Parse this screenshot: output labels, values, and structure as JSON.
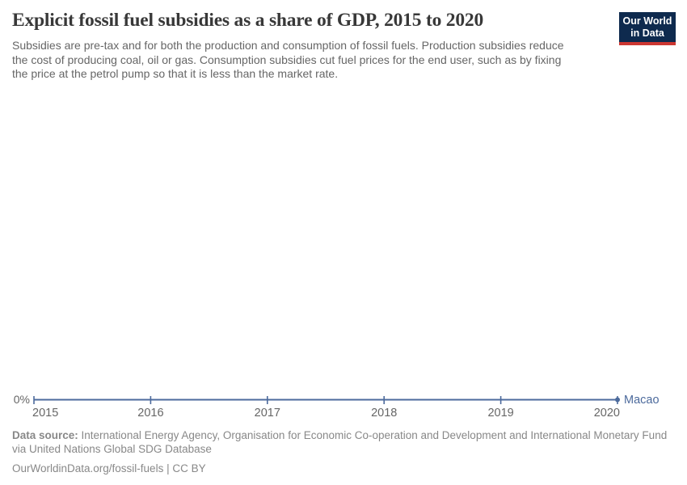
{
  "header": {
    "title": "Explicit fossil fuel subsidies as a share of GDP, 2015 to 2020",
    "subtitle_lines": [
      "Subsidies are pre-tax and for both the production and consumption of fossil fuels. Production subsidies reduce",
      "the cost of producing coal, oil or gas. Consumption subsidies cut fuel prices for the end user, such as by fixing",
      "the price at the petrol pump so that it is less than the market rate."
    ]
  },
  "logo": {
    "line1": "Our World",
    "line2": "in Data",
    "bg_color": "#0e2a4e",
    "stripe_color": "#cc3732"
  },
  "chart_data": {
    "type": "line",
    "title": "Explicit fossil fuel subsidies as a share of GDP, 2015 to 2020",
    "x": [
      2015,
      2016,
      2017,
      2018,
      2019,
      2020
    ],
    "series": [
      {
        "name": "Macao",
        "values": [
          0,
          0,
          0,
          0,
          0,
          0
        ],
        "color": "#4c6a9c"
      }
    ],
    "xlabel": "",
    "ylabel": "",
    "x_axis": {
      "tick_labels": [
        "2015",
        "2016",
        "2017",
        "2018",
        "2019",
        "2020"
      ],
      "tick_color": "#666666"
    },
    "y_axis": {
      "tick_labels": [
        "0%"
      ],
      "range_shown": [
        0,
        0
      ],
      "tick_color": "#666666"
    },
    "grid": false,
    "legend": "inline-end-label",
    "end_marker": "dot"
  },
  "footer": {
    "datasource_label": "Data source:",
    "datasource_text": " International Energy Agency, Organisation for Economic Co-operation and Development and International Monetary Fund via United Nations Global SDG Database",
    "note": "OurWorldinData.org/fossil-fuels | CC BY"
  }
}
